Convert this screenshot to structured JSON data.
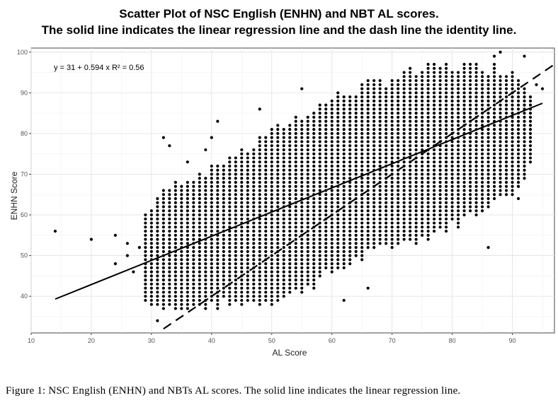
{
  "chart_data": {
    "type": "scatter",
    "title": "Scatter Plot of NSC English (ENHN) and NBT AL scores.",
    "subtitle": "The solid line indicates the linear regression line and the dash line the identity line.",
    "xlabel": "AL Score",
    "ylabel": "ENHN Score",
    "xlim": [
      10,
      97
    ],
    "ylim": [
      31,
      101
    ],
    "xticks": [
      10,
      20,
      30,
      40,
      50,
      60,
      70,
      80,
      90
    ],
    "yticks": [
      40,
      50,
      60,
      70,
      80,
      90,
      100
    ],
    "grid": true,
    "annotation": "y = 31 + 0.594 x   R² = 0.56",
    "regression": {
      "intercept": 31,
      "slope": 0.594,
      "r2": 0.56,
      "x_range": [
        14,
        95
      ],
      "style": "solid"
    },
    "identity_line": {
      "x_range": [
        32,
        97
      ],
      "style": "dashed"
    },
    "point_cloud_bounds": {
      "description": "dense grid of integer-valued points",
      "x_range": [
        29,
        93
      ],
      "lower_edge": [
        [
          29,
          39
        ],
        [
          35,
          37
        ],
        [
          40,
          38
        ],
        [
          45,
          39
        ],
        [
          50,
          39
        ],
        [
          55,
          42
        ],
        [
          60,
          46
        ],
        [
          65,
          50
        ],
        [
          70,
          53
        ],
        [
          75,
          55
        ],
        [
          80,
          58
        ],
        [
          85,
          62
        ],
        [
          90,
          66
        ],
        [
          93,
          72
        ]
      ],
      "upper_edge": [
        [
          29,
          60
        ],
        [
          31,
          64
        ],
        [
          35,
          68
        ],
        [
          40,
          71
        ],
        [
          45,
          75
        ],
        [
          50,
          80
        ],
        [
          55,
          84
        ],
        [
          60,
          88
        ],
        [
          65,
          91
        ],
        [
          70,
          93
        ],
        [
          75,
          95
        ],
        [
          80,
          96
        ],
        [
          85,
          96
        ],
        [
          90,
          95
        ],
        [
          93,
          90
        ]
      ]
    },
    "outliers": [
      {
        "x": 14,
        "y": 56
      },
      {
        "x": 20,
        "y": 54
      },
      {
        "x": 24,
        "y": 55
      },
      {
        "x": 24,
        "y": 48
      },
      {
        "x": 26,
        "y": 53
      },
      {
        "x": 26,
        "y": 50
      },
      {
        "x": 27,
        "y": 46
      },
      {
        "x": 28,
        "y": 52
      },
      {
        "x": 32,
        "y": 79
      },
      {
        "x": 33,
        "y": 77
      },
      {
        "x": 31,
        "y": 34
      },
      {
        "x": 36,
        "y": 73
      },
      {
        "x": 39,
        "y": 76
      },
      {
        "x": 40,
        "y": 79
      },
      {
        "x": 41,
        "y": 83
      },
      {
        "x": 48,
        "y": 86
      },
      {
        "x": 55,
        "y": 91
      },
      {
        "x": 62,
        "y": 39
      },
      {
        "x": 66,
        "y": 42
      },
      {
        "x": 86,
        "y": 52
      },
      {
        "x": 88,
        "y": 100
      },
      {
        "x": 92,
        "y": 99
      },
      {
        "x": 91,
        "y": 64
      },
      {
        "x": 94,
        "y": 92
      },
      {
        "x": 95,
        "y": 91
      },
      {
        "x": 91,
        "y": 67
      },
      {
        "x": 87,
        "y": 99
      }
    ]
  },
  "caption": "Figure 1: NSC English (ENHN) and NBTs AL scores. The solid line indicates the linear regression line."
}
